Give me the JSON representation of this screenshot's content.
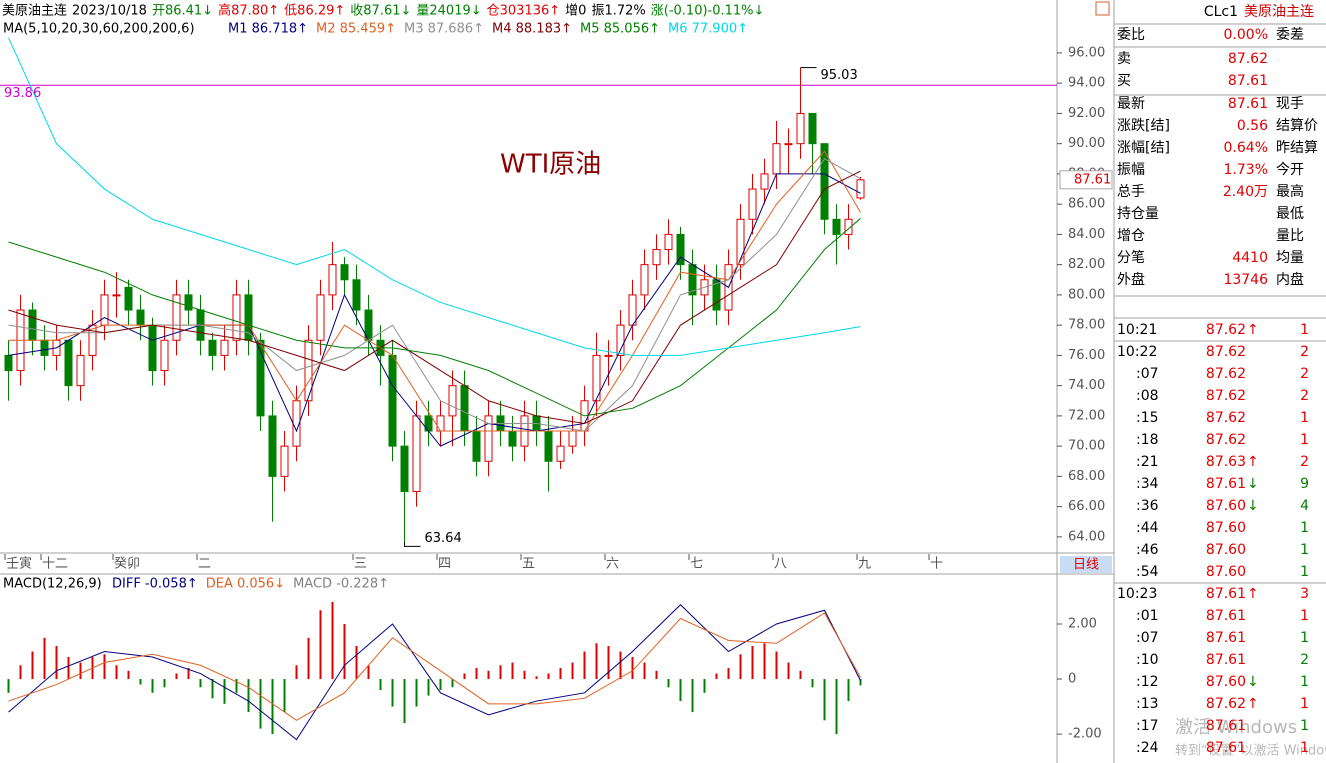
{
  "header": {
    "items": [
      {
        "text": "美原油主连",
        "color": "#000000"
      },
      {
        "text": "2023/10/18",
        "color": "#000000"
      },
      {
        "text": "开86.41↓",
        "color": "#008000"
      },
      {
        "text": "高87.80↑",
        "color": "#e00000"
      },
      {
        "text": "低86.29↑",
        "color": "#e00000"
      },
      {
        "text": "收87.61↓",
        "color": "#008000"
      },
      {
        "text": "量24019↓",
        "color": "#008000"
      },
      {
        "text": "仓303136↑",
        "color": "#e00000"
      },
      {
        "text": "增0",
        "color": "#000000"
      },
      {
        "text": "振1.72%",
        "color": "#000000"
      },
      {
        "text": "涨(-0.10)-0.11%↓",
        "color": "#008000"
      }
    ]
  },
  "price_chart": {
    "ma_title": "MA(5,10,20,30,60,200,200,6)",
    "ylim": [
      63,
      99.5
    ],
    "yticks": [
      {
        "value": 96,
        "label": "96.00"
      },
      {
        "value": 94,
        "label": "94.00"
      },
      {
        "value": 92,
        "label": "92.00"
      },
      {
        "value": 90,
        "label": "90.00"
      },
      {
        "value": 88,
        "label": "88.00"
      },
      {
        "value": 86,
        "label": "86.00"
      },
      {
        "value": 84,
        "label": "84.00"
      },
      {
        "value": 82,
        "label": "82.00"
      },
      {
        "value": 80,
        "label": "80.00"
      },
      {
        "value": 78,
        "label": "78.00"
      },
      {
        "value": 76,
        "label": "76.00"
      },
      {
        "value": 74,
        "label": "74.00"
      },
      {
        "value": 72,
        "label": "72.00"
      },
      {
        "value": 70,
        "label": "70.00"
      },
      {
        "value": 68,
        "label": "68.00"
      },
      {
        "value": 66,
        "label": "66.00"
      },
      {
        "value": 64,
        "label": "64.00"
      }
    ],
    "hline": {
      "value": 93.86,
      "label": "93.86",
      "color": "#cc00cc"
    },
    "max_mark": {
      "value": 95.03,
      "label": "95.03"
    },
    "min_mark": {
      "value": 63.64,
      "label": "63.64"
    },
    "annotation": "WTI原油",
    "last_tag": {
      "value": 87.61,
      "label": "87.61"
    },
    "up_color": "#e00000",
    "down_color": "#008000",
    "candles": {
      "open": [
        76,
        75,
        79,
        77,
        76,
        77,
        74,
        76,
        78,
        80,
        80.5,
        79,
        78,
        75,
        77,
        80,
        79,
        77,
        76,
        77,
        80,
        77,
        72,
        68,
        70,
        73,
        77,
        80,
        82,
        81,
        79,
        77,
        76,
        70,
        67,
        72,
        71,
        72,
        74,
        71,
        69,
        72,
        71,
        70,
        72,
        71,
        69,
        70,
        71,
        73,
        76,
        76,
        78,
        80,
        82,
        83,
        84,
        82,
        80,
        81,
        79,
        82,
        85,
        87,
        88,
        90,
        90,
        92,
        90,
        85,
        84,
        86.41
      ],
      "high": [
        77,
        80,
        79.5,
        78,
        78,
        77,
        77,
        79,
        81,
        81.5,
        81,
        80,
        78.5,
        78,
        81,
        81,
        80,
        77.5,
        78,
        81,
        81,
        77.5,
        73,
        71,
        74,
        78,
        81,
        83.5,
        82.5,
        82,
        80,
        78,
        77,
        71,
        73,
        73,
        73,
        75,
        75,
        72,
        73,
        73,
        72,
        73,
        73,
        72,
        71,
        72,
        74,
        77.5,
        77,
        79,
        81,
        83,
        84,
        85,
        84.5,
        83,
        82,
        82,
        83,
        86,
        88,
        89,
        91.5,
        91,
        95.03,
        92,
        90,
        86,
        86,
        87.8
      ],
      "low": [
        73,
        74,
        76,
        75,
        75,
        73,
        73,
        75,
        77,
        78.5,
        78,
        77,
        74,
        74,
        76,
        78,
        76,
        75,
        75,
        76,
        76,
        71,
        65,
        67,
        69,
        72,
        76,
        79,
        80,
        78,
        76,
        74,
        69,
        63.64,
        66,
        70,
        70,
        70,
        70,
        68,
        68,
        70,
        69,
        69,
        70,
        67,
        68.5,
        69.5,
        70,
        72,
        74,
        75,
        77,
        79,
        81,
        82,
        81,
        78,
        79,
        78,
        78,
        81,
        84,
        86,
        87,
        88,
        89,
        88,
        84,
        82,
        83,
        86.29
      ],
      "close": [
        75,
        79,
        77,
        76,
        77,
        74,
        76,
        78,
        80,
        80,
        79,
        78,
        75,
        77,
        80,
        79,
        77,
        76,
        77,
        80,
        77,
        72,
        68,
        70,
        73,
        77,
        80,
        82,
        81,
        79,
        77,
        76,
        70,
        67,
        72,
        71,
        72,
        74,
        71,
        69,
        72,
        71,
        70,
        72,
        71,
        69,
        70,
        71,
        73,
        76,
        76,
        78,
        80,
        82,
        83,
        84,
        82,
        80,
        81,
        79,
        82,
        85,
        87,
        88,
        90,
        90,
        92,
        90,
        85,
        84,
        85,
        87.61
      ]
    },
    "ma_index": [
      0,
      4,
      8,
      12,
      16,
      20,
      24,
      28,
      32,
      36,
      40,
      44,
      48,
      52,
      56,
      60,
      64,
      68,
      71
    ],
    "ma_lines": [
      {
        "name": "M1 86.718↑",
        "color": "#000080",
        "values": [
          76,
          76.5,
          78.5,
          77,
          78,
          78,
          71,
          80,
          74,
          70,
          71.5,
          71,
          71.5,
          78,
          82.5,
          80.5,
          88,
          88,
          86.718
        ]
      },
      {
        "name": "M2 85.459↑",
        "color": "#e06020",
        "values": [
          77,
          77,
          78,
          78,
          78,
          78,
          73,
          78,
          76,
          71,
          71,
          71,
          71,
          76,
          81.5,
          81,
          86,
          89.5,
          85.459
        ]
      },
      {
        "name": "M3 87.686↑",
        "color": "#909090",
        "values": [
          78,
          77.5,
          77.5,
          78,
          78,
          77.5,
          75,
          76,
          78,
          73,
          71.5,
          71.5,
          71,
          74,
          80,
          81,
          84,
          89,
          87.686
        ]
      },
      {
        "name": "M4 88.183↑",
        "color": "#800000",
        "values": [
          79,
          78,
          77.5,
          78,
          77.5,
          77,
          76,
          75,
          77,
          75,
          73,
          72,
          71.5,
          73,
          78,
          80,
          82,
          87,
          88.183
        ]
      },
      {
        "name": "M5 85.056↑",
        "color": "#008000",
        "values": [
          83.5,
          82.5,
          81.5,
          80,
          79,
          78,
          77,
          76.5,
          76.5,
          76,
          75,
          73.5,
          72,
          72.5,
          74,
          76.5,
          79,
          83,
          85.056
        ]
      },
      {
        "name": "M6 77.900↑",
        "color": "#00d8e8",
        "values": [
          97,
          90,
          87,
          85,
          84,
          83,
          82,
          83,
          81,
          79.5,
          78.5,
          77.5,
          76.5,
          76,
          76,
          76.5,
          77,
          77.5,
          77.9
        ]
      }
    ]
  },
  "time_axis": {
    "labels": [
      "壬寅",
      null,
      null,
      "十二",
      null,
      null,
      null,
      null,
      null,
      "癸卯",
      null,
      null,
      null,
      null,
      null,
      null,
      "二",
      null,
      null,
      null,
      null,
      null,
      null,
      null,
      null,
      null,
      null,
      null,
      null,
      "三",
      null,
      null,
      null,
      null,
      null,
      null,
      "四",
      null,
      null,
      null,
      null,
      null,
      null,
      "五",
      null,
      null,
      null,
      null,
      null,
      null,
      "六",
      null,
      null,
      null,
      null,
      null,
      null,
      "七",
      null,
      null,
      null,
      null,
      null,
      null,
      "八",
      null,
      null,
      null,
      null,
      null,
      null,
      "九",
      null,
      null,
      null,
      null,
      null,
      "十"
    ],
    "period": "日线"
  },
  "macd_chart": {
    "title": "MACD(12,26,9)",
    "ylim": [
      -3.05,
      3.78
    ],
    "yticks": [
      {
        "value": 2,
        "label": "2.00"
      },
      0,
      {
        "value": -2,
        "label": "-2.00"
      }
    ],
    "diff": {
      "name": "DIFF -0.058↑",
      "color": "#000080",
      "values": [
        -1.2,
        0.3,
        1.0,
        0.8,
        0.2,
        -0.8,
        -2.2,
        0.5,
        2.0,
        -0.5,
        -1.3,
        -0.8,
        -0.5,
        1.0,
        2.7,
        1.0,
        2.0,
        2.5,
        -0.058
      ]
    },
    "dea": {
      "name": "DEA 0.056↓",
      "color": "#e06020",
      "values": [
        -0.8,
        -0.2,
        0.6,
        0.9,
        0.5,
        -0.3,
        -1.5,
        -0.5,
        1.5,
        0.3,
        -0.9,
        -0.9,
        -0.7,
        0.3,
        2.2,
        1.4,
        1.3,
        2.4,
        0.056
      ]
    },
    "macd": {
      "name": "MACD -0.228↑",
      "color": "#808080",
      "values": [
        -0.5,
        0.5,
        1.0,
        1.5,
        1.2,
        0.8,
        0.6,
        0.8,
        0.9,
        0.5,
        0.3,
        -0.2,
        -0.5,
        -0.3,
        0.2,
        0.4,
        -0.3,
        -0.7,
        -0.9,
        -0.5,
        -1.2,
        -1.8,
        -2.0,
        -1.2,
        0.5,
        1.5,
        2.5,
        2.8,
        2.0,
        1.2,
        0.5,
        -0.4,
        -1.0,
        -1.6,
        -1.0,
        -0.6,
        -0.4,
        -0.3,
        0.2,
        0.4,
        0.3,
        0.5,
        0.6,
        0.3,
        0.1,
        0.2,
        0.4,
        0.6,
        1.0,
        1.3,
        1.2,
        1.0,
        0.8,
        0.6,
        0.3,
        -0.3,
        -0.8,
        -1.2,
        -0.5,
        0.2,
        0.4,
        0.9,
        1.2,
        1.3,
        1.0,
        0.6,
        0.3,
        -0.3,
        -1.5,
        -2.0,
        -0.8,
        -0.228
      ]
    }
  },
  "quote": {
    "code": "CLc1",
    "name": "美原油主连",
    "rows": [
      {
        "label": "委比",
        "value": "0.00%",
        "label2": "委差"
      },
      {
        "label": "卖",
        "value": "87.62"
      },
      {
        "label": "买",
        "value": "87.61"
      },
      {
        "label": "最新",
        "value": "87.61",
        "label2": "现手"
      },
      {
        "label": "涨跌[结]",
        "value": "0.56",
        "label2": "结算价"
      },
      {
        "label": "涨幅[结]",
        "value": "0.64%",
        "label2": "昨结算"
      },
      {
        "label": "振幅",
        "value": "1.73%",
        "label2": "今开"
      },
      {
        "label": "总手",
        "value": "2.40万",
        "label2": "最高"
      },
      {
        "label": "持仓量",
        "label2": "最低"
      },
      {
        "label": "增仓",
        "label2": "量比"
      },
      {
        "label": "分笔",
        "value": "4410",
        "label2": "均量"
      },
      {
        "label": "外盘",
        "value": "13746",
        "label2": "内盘"
      }
    ],
    "trades": [
      {
        "time": "10:21",
        "price": "87.62",
        "arrow": "↑",
        "volume": "1",
        "side": "buy"
      },
      {
        "time": "10:22",
        "price": "87.62",
        "volume": "2",
        "side": "buy"
      },
      {
        "time": ":07",
        "price": "87.62",
        "volume": "2",
        "side": "buy"
      },
      {
        "time": ":08",
        "price": "87.62",
        "volume": "2",
        "side": "buy"
      },
      {
        "time": ":15",
        "price": "87.62",
        "volume": "1",
        "side": "buy"
      },
      {
        "time": ":18",
        "price": "87.62",
        "volume": "1",
        "side": "buy"
      },
      {
        "time": ":21",
        "price": "87.63",
        "arrow": "↑",
        "volume": "2",
        "side": "buy"
      },
      {
        "time": ":34",
        "price": "87.61",
        "arrow": "↓",
        "volume": "9",
        "side": "sell"
      },
      {
        "time": ":36",
        "price": "87.60",
        "arrow": "↓",
        "volume": "4",
        "side": "sell"
      },
      {
        "time": ":44",
        "price": "87.60",
        "volume": "1",
        "side": "sell"
      },
      {
        "time": ":46",
        "price": "87.60",
        "volume": "1",
        "side": "sell"
      },
      {
        "time": ":54",
        "price": "87.60",
        "volume": "1",
        "side": "sell"
      },
      {
        "time": "10:23",
        "price": "87.61",
        "arrow": "↑",
        "volume": "3",
        "side": "buy"
      },
      {
        "time": ":01",
        "price": "87.61",
        "volume": "1",
        "side": "buy"
      },
      {
        "time": ":07",
        "price": "87.61",
        "volume": "1",
        "side": "sell"
      },
      {
        "time": ":10",
        "price": "87.61",
        "volume": "2",
        "side": "sell"
      },
      {
        "time": ":12",
        "price": "87.60",
        "arrow": "↓",
        "volume": "1",
        "side": "sell"
      },
      {
        "time": ":13",
        "price": "87.62",
        "arrow": "↑",
        "volume": "1",
        "side": "buy"
      },
      {
        "time": ":17",
        "price": "87.61",
        "volume": "1",
        "side": "sell"
      },
      {
        "time": ":24",
        "price": "87.61",
        "volume": "1",
        "side": "buy"
      }
    ]
  },
  "watermark": {
    "line1": "激活 Windows",
    "line2": "转到“设置”以激活 Windows。"
  }
}
